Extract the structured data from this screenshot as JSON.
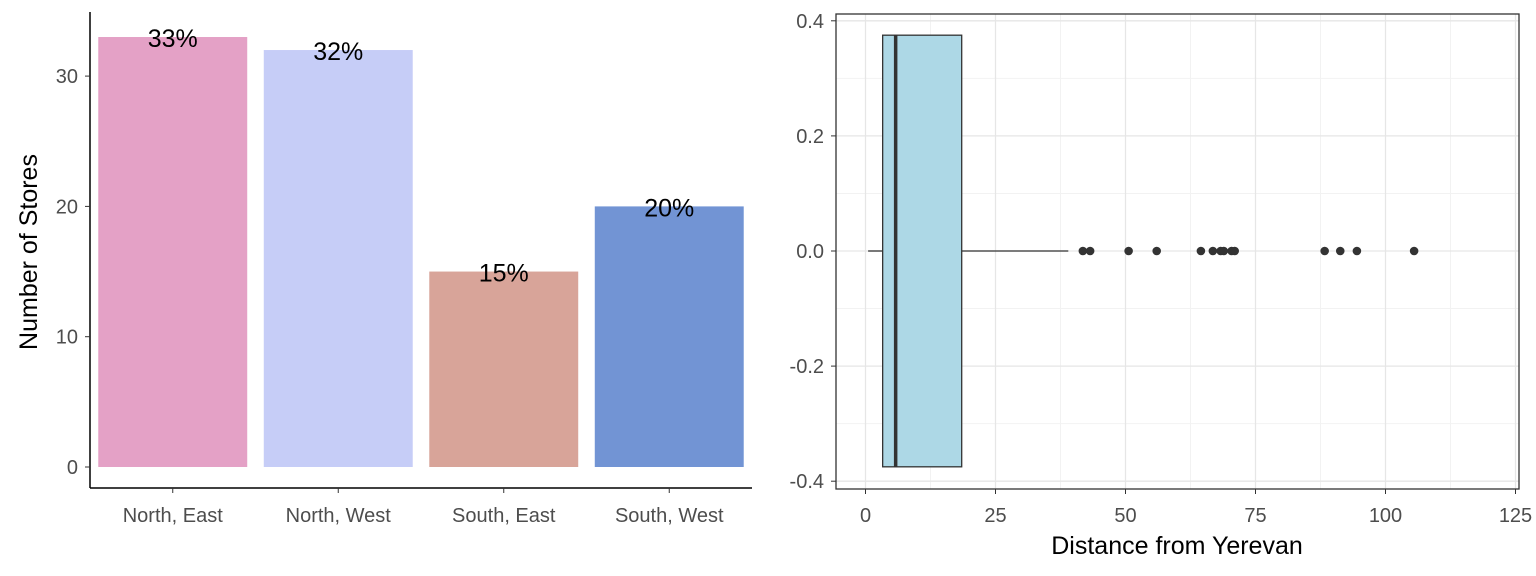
{
  "chart_data": [
    {
      "type": "bar",
      "title": "",
      "xlabel": "",
      "ylabel": "Number of Stores",
      "ylim": [
        0,
        34
      ],
      "yticks": [
        0,
        10,
        20,
        30
      ],
      "grid": false,
      "categories": [
        "North, East",
        "North, West",
        "South, East",
        "South, West"
      ],
      "values": [
        33,
        32,
        15,
        20
      ],
      "labels": [
        "33%",
        "32%",
        "15%",
        "20%"
      ],
      "colors": [
        "#e4a1c6",
        "#c6cdf7",
        "#d8a499",
        "#7294d4"
      ]
    },
    {
      "type": "boxplot",
      "title": "",
      "xlabel": "Distance from Yerevan",
      "ylabel": "",
      "xlim": [
        -6,
        126
      ],
      "ylim": [
        -0.42,
        0.42
      ],
      "xticks": [
        0,
        25,
        50,
        75,
        100,
        125
      ],
      "yticks": [
        "-0.4",
        "-0.2",
        "0.0",
        "0.2",
        "0.4"
      ],
      "grid": true,
      "fill_color": "#add8e6",
      "box": {
        "whisker_low": 0.5,
        "q1": 3.3,
        "median": 5.8,
        "q3": 18.5,
        "whisker_high": 39
      },
      "box_y_extent": [
        -0.375,
        0.375
      ],
      "outliers": [
        41.8,
        43.2,
        50.6,
        56,
        64.5,
        66.8,
        68.3,
        68.9,
        70.4,
        71,
        88.3,
        91.3,
        94.5,
        105.5
      ]
    }
  ]
}
